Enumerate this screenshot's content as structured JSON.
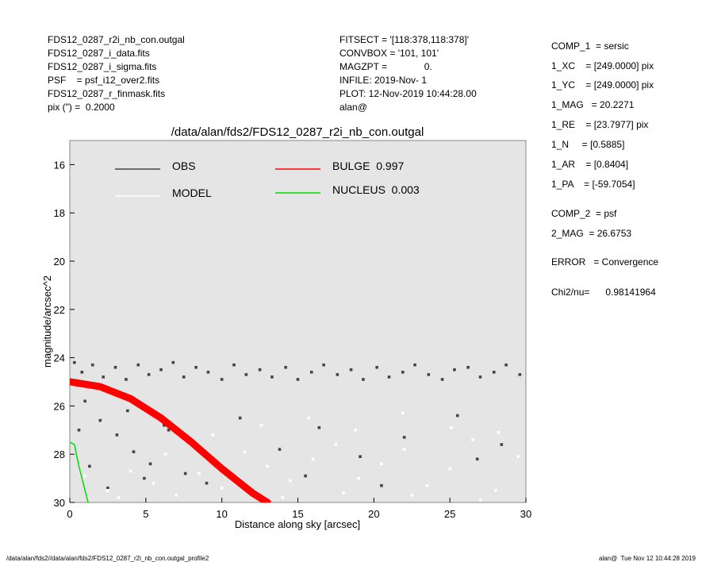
{
  "header_left": [
    "FDS12_0287_r2i_nb_con.outgal",
    "FDS12_0287_i_data.fits",
    "FDS12_0287_i_sigma.fits",
    "PSF    = psf_i12_over2.fits",
    "FDS12_0287_r_finmask.fits",
    "pix (\") =  0.2000"
  ],
  "header_mid": [
    "FITSECT = '[118:378,118:378]'",
    "CONVBOX = '101, 101'",
    "MAGZPT =              0.",
    "INFILE: 2019-Nov- 1",
    "PLOT: 12-Nov-2019 10:44:28.00",
    "alan@"
  ],
  "header_right": [
    "COMP_1  = sersic",
    "1_XC    = [249.0000] pix",
    "1_YC    = [249.0000] pix",
    "1_MAG   = 20.2271",
    "1_RE    = [23.7977] pix",
    "1_N     = [0.5885]",
    "1_AR    = [0.8404]",
    "1_PA    = [-59.7054]",
    "COMP_2  = psf",
    "2_MAG  = 26.6753",
    "ERROR   = Convergence",
    "Chi2/nu=      0.98141964"
  ],
  "footer_left": "/data/alan/fds2//data/alan/fds2/FDS12_0287_r2i_nb_con.outgal_profile2",
  "footer_right": "alan@  Tue Nov 12 10:44:28 2019",
  "chart_data": {
    "type": "scatter",
    "title": "/data/alan/fds2/FDS12_0287_r2i_nb_con.outgal",
    "xlabel": "Distance along sky [arcsec]",
    "ylabel": "magnitude/arcsec^2",
    "xlim": [
      0,
      30
    ],
    "ylim": [
      15,
      30
    ],
    "y_inverted": true,
    "xticks": [
      0,
      5,
      10,
      15,
      20,
      25,
      30
    ],
    "yticks": [
      16,
      18,
      20,
      22,
      24,
      26,
      28,
      30
    ],
    "series": [
      {
        "name": "OBS",
        "color": "#454545",
        "kind": "points",
        "x": [
          0.3,
          0.8,
          1.5,
          2.2,
          3.0,
          3.7,
          4.5,
          5.2,
          6.0,
          6.8,
          7.5,
          8.3,
          9.1,
          10.0,
          10.8,
          11.6,
          12.5,
          13.3,
          14.2,
          15.0,
          15.9,
          16.7,
          17.6,
          18.5,
          19.3,
          20.2,
          21.0,
          21.9,
          22.7,
          23.6,
          24.5,
          25.3,
          26.2,
          27.0,
          27.9,
          28.7,
          29.6,
          1.0,
          2.0,
          3.1,
          4.2,
          5.3,
          6.5,
          7.6,
          9.0,
          11.2,
          13.8,
          16.4,
          19.1,
          22.0,
          25.5,
          28.4,
          0.6,
          1.3,
          2.5,
          3.8,
          4.9,
          6.2,
          8.5,
          12.0,
          15.5,
          20.5,
          26.8
        ],
        "values": [
          24.2,
          24.6,
          24.3,
          24.8,
          24.4,
          24.9,
          24.3,
          24.7,
          24.5,
          24.2,
          24.8,
          24.4,
          24.6,
          24.9,
          24.3,
          24.7,
          24.5,
          24.8,
          24.4,
          24.9,
          24.6,
          24.3,
          24.7,
          24.5,
          24.9,
          24.4,
          24.8,
          24.6,
          24.3,
          24.7,
          24.9,
          24.5,
          24.4,
          24.8,
          24.6,
          24.3,
          24.7,
          25.8,
          26.6,
          27.2,
          27.9,
          28.4,
          27.0,
          28.8,
          29.2,
          26.5,
          27.8,
          26.9,
          28.1,
          27.3,
          26.4,
          27.6,
          27.0,
          28.5,
          29.4,
          26.2,
          29.0,
          26.8,
          27.7,
          29.6,
          28.9,
          29.3,
          28.2
        ]
      },
      {
        "name": "MODEL",
        "color": "#ffffff",
        "kind": "points",
        "x": [
          1.0,
          2.5,
          4.0,
          5.5,
          7.0,
          8.5,
          10.0,
          11.5,
          13.0,
          14.5,
          16.0,
          17.5,
          19.0,
          20.5,
          22.0,
          23.5,
          25.0,
          26.5,
          28.0,
          29.5,
          3.2,
          6.3,
          9.4,
          12.6,
          15.7,
          18.8,
          21.9,
          25.1,
          28.2,
          14.0,
          18.0,
          22.5,
          27.0
        ],
        "values": [
          28.9,
          29.5,
          28.7,
          29.2,
          29.7,
          28.8,
          29.4,
          27.9,
          28.5,
          29.1,
          28.2,
          27.6,
          29.0,
          28.4,
          27.8,
          29.3,
          28.6,
          27.4,
          29.5,
          28.1,
          29.8,
          28.0,
          27.2,
          26.8,
          26.5,
          27.0,
          26.3,
          26.9,
          27.1,
          29.8,
          29.6,
          29.7,
          29.9
        ]
      },
      {
        "name": "BULGE  0.997",
        "color": "#ff0000",
        "kind": "band",
        "x": [
          0,
          2,
          4,
          6,
          8,
          10,
          12,
          13
        ],
        "values": [
          25.0,
          25.2,
          25.7,
          26.5,
          27.5,
          28.6,
          29.6,
          30.0
        ]
      },
      {
        "name": "NUCLEUS  0.003",
        "color": "#00dd00",
        "kind": "line",
        "x": [
          0,
          0.3,
          0.6,
          1.2
        ],
        "values": [
          27.5,
          27.6,
          28.5,
          30.0
        ]
      }
    ]
  }
}
